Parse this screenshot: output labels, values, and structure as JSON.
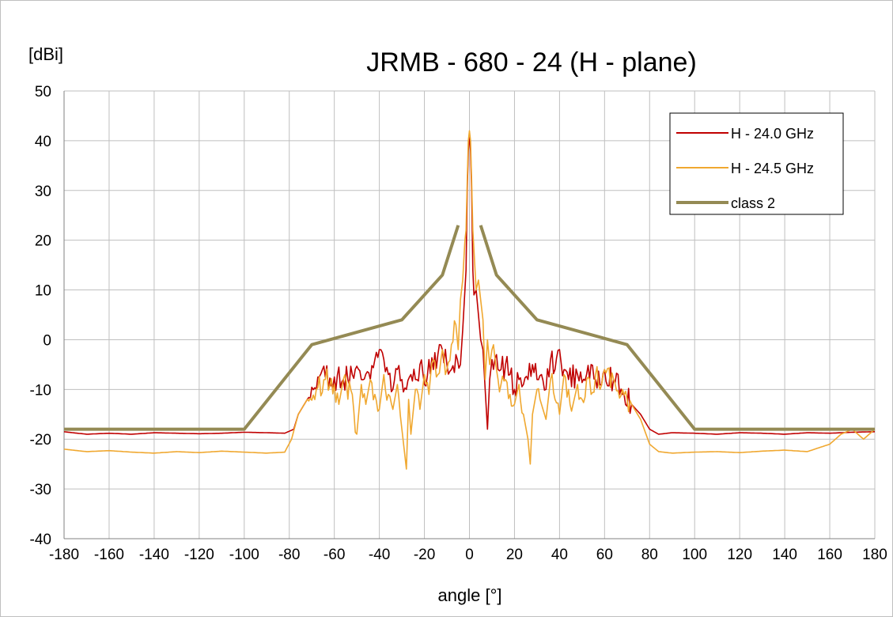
{
  "chart_data": {
    "type": "line",
    "title": "JRMB - 680 - 24 (H - plane)",
    "xlabel": "angle [°]",
    "ylabel": "[dBi]",
    "xlim": [
      -180,
      180
    ],
    "ylim": [
      -40,
      50
    ],
    "x_ticks": [
      -180,
      -160,
      -140,
      -120,
      -100,
      -80,
      -60,
      -40,
      -20,
      0,
      20,
      40,
      60,
      80,
      100,
      120,
      140,
      160,
      180
    ],
    "y_ticks": [
      -40,
      -30,
      -20,
      -10,
      0,
      10,
      20,
      30,
      40,
      50
    ],
    "grid": true,
    "legend_position": "top-right",
    "series": [
      {
        "name": "H - 24.0 GHz",
        "color": "#c00000",
        "line_width": "thin",
        "points": [
          [
            -180,
            -18.5
          ],
          [
            -170,
            -19
          ],
          [
            -160,
            -18.8
          ],
          [
            -150,
            -19
          ],
          [
            -140,
            -18.7
          ],
          [
            -130,
            -18.8
          ],
          [
            -120,
            -18.9
          ],
          [
            -110,
            -18.8
          ],
          [
            -100,
            -18.6
          ],
          [
            -90,
            -18.7
          ],
          [
            -82,
            -18.8
          ],
          [
            -78,
            -18
          ],
          [
            -76,
            -15
          ],
          [
            -72,
            -12
          ],
          [
            -68,
            -10
          ],
          [
            -64,
            -7.5
          ],
          [
            -60,
            -7.5
          ],
          [
            -56,
            -8
          ],
          [
            -52,
            -7
          ],
          [
            -48,
            -8
          ],
          [
            -44,
            -8
          ],
          [
            -42,
            -4
          ],
          [
            -40,
            -2
          ],
          [
            -38,
            -4
          ],
          [
            -36,
            -7
          ],
          [
            -34,
            -10
          ],
          [
            -32,
            -6
          ],
          [
            -30,
            -8
          ],
          [
            -28,
            -10
          ],
          [
            -26,
            -7
          ],
          [
            -24,
            -8
          ],
          [
            -22,
            -5
          ],
          [
            -20,
            -9
          ],
          [
            -18,
            -4
          ],
          [
            -16,
            -6
          ],
          [
            -14,
            -3
          ],
          [
            -12,
            -2
          ],
          [
            -10,
            -5
          ],
          [
            -8,
            -6
          ],
          [
            -6,
            -3
          ],
          [
            -4,
            -5
          ],
          [
            -3,
            2
          ],
          [
            -2,
            10
          ],
          [
            -1.5,
            14
          ],
          [
            -1,
            30
          ],
          [
            -0.5,
            38
          ],
          [
            0,
            41
          ],
          [
            0.5,
            38
          ],
          [
            1,
            30
          ],
          [
            1.5,
            14
          ],
          [
            2,
            9
          ],
          [
            3,
            10
          ],
          [
            4,
            5
          ],
          [
            5,
            0
          ],
          [
            6,
            -2
          ],
          [
            7,
            -10
          ],
          [
            8,
            -18
          ],
          [
            9,
            -8
          ],
          [
            10,
            -4
          ],
          [
            12,
            -3
          ],
          [
            14,
            -6
          ],
          [
            16,
            -5
          ],
          [
            18,
            -7
          ],
          [
            20,
            -10
          ],
          [
            22,
            -8
          ],
          [
            24,
            -9
          ],
          [
            26,
            -8
          ],
          [
            28,
            -5
          ],
          [
            30,
            -8
          ],
          [
            32,
            -7
          ],
          [
            34,
            -10
          ],
          [
            36,
            -4
          ],
          [
            38,
            -6
          ],
          [
            40,
            -2
          ],
          [
            42,
            -6
          ],
          [
            44,
            -8
          ],
          [
            48,
            -7
          ],
          [
            52,
            -7
          ],
          [
            56,
            -8
          ],
          [
            60,
            -6
          ],
          [
            64,
            -8
          ],
          [
            68,
            -11
          ],
          [
            72,
            -13
          ],
          [
            76,
            -15
          ],
          [
            80,
            -18
          ],
          [
            84,
            -19
          ],
          [
            90,
            -18.7
          ],
          [
            100,
            -18.8
          ],
          [
            110,
            -19
          ],
          [
            120,
            -18.7
          ],
          [
            130,
            -18.8
          ],
          [
            140,
            -19
          ],
          [
            150,
            -18.7
          ],
          [
            160,
            -18.8
          ],
          [
            170,
            -18.6
          ],
          [
            180,
            -18.5
          ]
        ]
      },
      {
        "name": "H - 24.5 GHz",
        "color": "#f0a830",
        "line_width": "thin",
        "points": [
          [
            -180,
            -22
          ],
          [
            -170,
            -22.5
          ],
          [
            -160,
            -22.3
          ],
          [
            -150,
            -22.6
          ],
          [
            -140,
            -22.8
          ],
          [
            -130,
            -22.5
          ],
          [
            -120,
            -22.7
          ],
          [
            -110,
            -22.4
          ],
          [
            -100,
            -22.6
          ],
          [
            -90,
            -22.8
          ],
          [
            -82,
            -22.6
          ],
          [
            -79,
            -20
          ],
          [
            -76,
            -15
          ],
          [
            -72,
            -12
          ],
          [
            -68,
            -10
          ],
          [
            -64,
            -8
          ],
          [
            -60,
            -9
          ],
          [
            -58,
            -13
          ],
          [
            -56,
            -8
          ],
          [
            -52,
            -11
          ],
          [
            -50,
            -19
          ],
          [
            -48,
            -9
          ],
          [
            -46,
            -13
          ],
          [
            -44,
            -8
          ],
          [
            -42,
            -11
          ],
          [
            -40,
            -14
          ],
          [
            -38,
            -7
          ],
          [
            -36,
            -11
          ],
          [
            -34,
            -14
          ],
          [
            -32,
            -9
          ],
          [
            -30,
            -18
          ],
          [
            -28,
            -26
          ],
          [
            -27,
            -12
          ],
          [
            -26,
            -19
          ],
          [
            -24,
            -10
          ],
          [
            -22,
            -14
          ],
          [
            -20,
            -7
          ],
          [
            -18,
            -11
          ],
          [
            -16,
            -4
          ],
          [
            -14,
            -7
          ],
          [
            -12,
            -2
          ],
          [
            -10,
            -6
          ],
          [
            -8,
            -1
          ],
          [
            -6,
            3
          ],
          [
            -5,
            -2
          ],
          [
            -4,
            8
          ],
          [
            -3,
            12
          ],
          [
            -2,
            20
          ],
          [
            -1.5,
            22
          ],
          [
            -1,
            32
          ],
          [
            -0.5,
            40
          ],
          [
            0,
            42
          ],
          [
            0.5,
            40
          ],
          [
            1,
            32
          ],
          [
            1.5,
            22
          ],
          [
            2,
            18
          ],
          [
            3,
            10
          ],
          [
            4,
            12
          ],
          [
            5,
            8
          ],
          [
            6,
            4
          ],
          [
            7,
            -8
          ],
          [
            8,
            0
          ],
          [
            9,
            -5
          ],
          [
            10,
            -2
          ],
          [
            12,
            -6
          ],
          [
            14,
            -9
          ],
          [
            16,
            -8
          ],
          [
            18,
            -11
          ],
          [
            20,
            -13
          ],
          [
            22,
            -9
          ],
          [
            24,
            -15
          ],
          [
            26,
            -20
          ],
          [
            27,
            -25
          ],
          [
            28,
            -15
          ],
          [
            30,
            -10
          ],
          [
            32,
            -13
          ],
          [
            34,
            -16
          ],
          [
            36,
            -8
          ],
          [
            38,
            -12
          ],
          [
            40,
            -15
          ],
          [
            42,
            -7
          ],
          [
            44,
            -10
          ],
          [
            46,
            -13
          ],
          [
            48,
            -9
          ],
          [
            50,
            -12
          ],
          [
            52,
            -8
          ],
          [
            54,
            -11
          ],
          [
            56,
            -7
          ],
          [
            58,
            -10
          ],
          [
            60,
            -6
          ],
          [
            64,
            -8
          ],
          [
            68,
            -10
          ],
          [
            72,
            -13
          ],
          [
            76,
            -16
          ],
          [
            80,
            -21
          ],
          [
            84,
            -22.5
          ],
          [
            90,
            -22.8
          ],
          [
            100,
            -22.6
          ],
          [
            110,
            -22.5
          ],
          [
            120,
            -22.7
          ],
          [
            130,
            -22.4
          ],
          [
            140,
            -22.2
          ],
          [
            150,
            -22.5
          ],
          [
            160,
            -21
          ],
          [
            165,
            -19
          ],
          [
            170,
            -18
          ],
          [
            175,
            -20
          ],
          [
            180,
            -18
          ]
        ]
      },
      {
        "name": "class 2",
        "color": "#948a54",
        "line_width": "thick",
        "segments": [
          [
            [
              -180,
              -18
            ],
            [
              -100,
              -18
            ],
            [
              -70,
              -1
            ],
            [
              -30,
              4
            ],
            [
              -12,
              13
            ],
            [
              -5,
              23
            ]
          ],
          [
            [
              5,
              23
            ],
            [
              12,
              13
            ],
            [
              30,
              4
            ],
            [
              70,
              -1
            ],
            [
              100,
              -18
            ],
            [
              180,
              -18
            ]
          ]
        ]
      }
    ]
  }
}
